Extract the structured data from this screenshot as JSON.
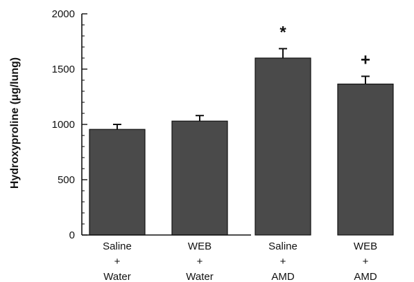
{
  "chart_data": {
    "type": "bar",
    "title": "",
    "xlabel": "",
    "ylabel": "Hydroxyproline (μg/lung)",
    "ylim": [
      0,
      2000
    ],
    "yticks": [
      0,
      500,
      1000,
      1500,
      2000
    ],
    "categories": [
      [
        "Saline",
        "+",
        "Water"
      ],
      [
        "WEB",
        "+",
        "Water"
      ],
      [
        "Saline",
        "+",
        "AMD"
      ],
      [
        "WEB",
        "+",
        "AMD"
      ]
    ],
    "values": [
      955,
      1030,
      1600,
      1365
    ],
    "errors": [
      45,
      50,
      85,
      70
    ],
    "annotations": [
      "",
      "",
      "*",
      "+"
    ],
    "grid": false,
    "bar_color": "#4a4a4a"
  }
}
